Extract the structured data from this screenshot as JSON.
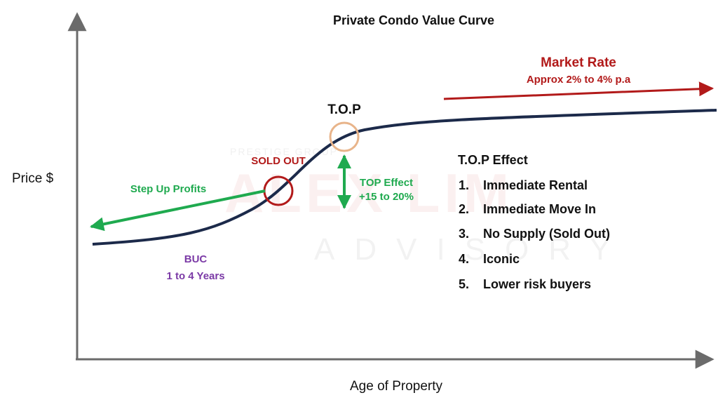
{
  "title": "Private Condo Value Curve",
  "y_axis_label": "Price $",
  "x_axis_label": "Age of Property",
  "watermark": {
    "main": "ALEX LIM",
    "sub": "ADVISORY",
    "top": "PRESTIGE GROUP"
  },
  "annotations": {
    "top_point": "T.O.P",
    "sold_out": "SOLD OUT",
    "step_up": "Step Up Profits",
    "buc_line1": "BUC",
    "buc_line2": "1 to 4 Years",
    "top_effect_line1": "TOP Effect",
    "top_effect_line2": "+15 to 20%",
    "market_rate": "Market Rate",
    "market_rate_sub": "Approx 2% to 4% p.a"
  },
  "top_effect_list": {
    "heading": "T.O.P Effect",
    "items": [
      {
        "num": "1.",
        "text": "Immediate Rental"
      },
      {
        "num": "2.",
        "text": "Immediate Move In"
      },
      {
        "num": "3.",
        "text": "No Supply (Sold Out)"
      },
      {
        "num": "4.",
        "text": "Iconic"
      },
      {
        "num": "5.",
        "text": "Lower risk buyers"
      }
    ]
  },
  "colors": {
    "curve": "#1c2a4a",
    "axis": "#6b6b6b",
    "market_red": "#b21a1a",
    "green": "#1faa4f",
    "buc_purple": "#7b3aa6",
    "sold_circle": "#b21a1a",
    "top_circle": "#e8b48a"
  }
}
